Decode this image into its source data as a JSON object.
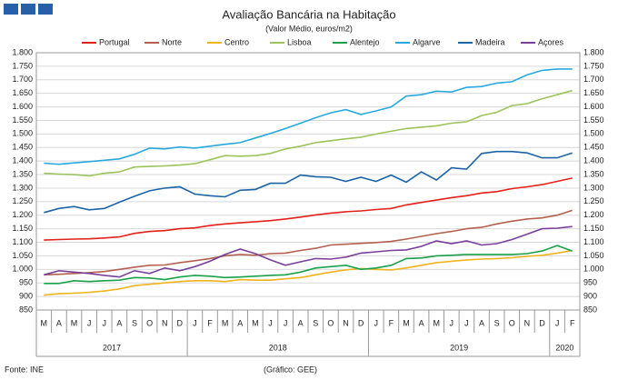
{
  "chart_data": {
    "type": "line",
    "title": "Avaliação Bancária na Habitação",
    "subtitle": "(Valor Médio, euros/m2)",
    "categories": [
      "M",
      "A",
      "M",
      "J",
      "J",
      "A",
      "S",
      "O",
      "N",
      "D",
      "J",
      "F",
      "M",
      "A",
      "M",
      "J",
      "J",
      "A",
      "S",
      "O",
      "N",
      "D",
      "J",
      "F",
      "M",
      "A",
      "M",
      "J",
      "J",
      "A",
      "S",
      "O",
      "N",
      "D",
      "J",
      "F"
    ],
    "years": [
      "2017",
      "2018",
      "2019",
      "2020"
    ],
    "series": [
      {
        "name": "Portugal",
        "color": "#e32119",
        "values": [
          1108,
          1110,
          1112,
          1113,
          1116,
          1120,
          1133,
          1140,
          1143,
          1150,
          1153,
          1162,
          1168,
          1172,
          1176,
          1180,
          1186,
          1193,
          1201,
          1208,
          1213,
          1216,
          1221,
          1225,
          1238,
          1247,
          1256,
          1265,
          1272,
          1282,
          1287,
          1298,
          1305,
          1313,
          1325,
          1337
        ]
      },
      {
        "name": "Norte",
        "color": "#b5604e",
        "values": [
          980,
          982,
          985,
          988,
          992,
          1000,
          1008,
          1015,
          1016,
          1025,
          1032,
          1040,
          1050,
          1055,
          1052,
          1058,
          1060,
          1070,
          1078,
          1090,
          1093,
          1096,
          1099,
          1103,
          1112,
          1122,
          1132,
          1140,
          1150,
          1155,
          1168,
          1178,
          1186,
          1190,
          1200,
          1218
        ]
      },
      {
        "name": "Centro",
        "color": "#f2b31d",
        "values": [
          905,
          910,
          912,
          915,
          920,
          928,
          940,
          945,
          950,
          955,
          958,
          958,
          955,
          962,
          960,
          960,
          965,
          970,
          980,
          990,
          998,
          1003,
          1000,
          998,
          1005,
          1015,
          1025,
          1030,
          1035,
          1038,
          1040,
          1043,
          1048,
          1052,
          1060,
          1070
        ]
      },
      {
        "name": "Lisboa",
        "color": "#9bc45a",
        "values": [
          1355,
          1352,
          1350,
          1345,
          1355,
          1360,
          1378,
          1380,
          1382,
          1385,
          1390,
          1405,
          1420,
          1418,
          1420,
          1428,
          1445,
          1455,
          1468,
          1475,
          1482,
          1488,
          1500,
          1510,
          1520,
          1525,
          1530,
          1540,
          1545,
          1568,
          1580,
          1605,
          1612,
          1630,
          1645,
          1660
        ]
      },
      {
        "name": "Alentejo",
        "color": "#1aa14a",
        "values": [
          948,
          948,
          958,
          955,
          958,
          960,
          970,
          968,
          962,
          972,
          978,
          975,
          970,
          972,
          975,
          978,
          980,
          990,
          1005,
          1010,
          1015,
          1000,
          1005,
          1015,
          1040,
          1042,
          1050,
          1052,
          1055,
          1055,
          1055,
          1055,
          1058,
          1068,
          1088,
          1068
        ]
      },
      {
        "name": "Algarve",
        "color": "#29a9e0",
        "values": [
          1392,
          1388,
          1393,
          1398,
          1403,
          1408,
          1425,
          1448,
          1445,
          1452,
          1448,
          1455,
          1462,
          1468,
          1485,
          1502,
          1520,
          1540,
          1560,
          1578,
          1590,
          1572,
          1585,
          1600,
          1640,
          1645,
          1658,
          1655,
          1672,
          1675,
          1688,
          1693,
          1718,
          1735,
          1740,
          1740
        ]
      },
      {
        "name": "Madeira",
        "color": "#1b64a8",
        "values": [
          1210,
          1225,
          1232,
          1220,
          1225,
          1248,
          1270,
          1290,
          1300,
          1305,
          1278,
          1272,
          1268,
          1292,
          1295,
          1318,
          1318,
          1348,
          1342,
          1340,
          1325,
          1340,
          1325,
          1348,
          1322,
          1360,
          1330,
          1375,
          1370,
          1428,
          1435,
          1435,
          1430,
          1412,
          1412,
          1430
        ]
      },
      {
        "name": "Açores",
        "color": "#7a3f9a",
        "values": [
          980,
          995,
          990,
          985,
          978,
          972,
          995,
          985,
          1005,
          995,
          1010,
          1030,
          1055,
          1075,
          1058,
          1035,
          1015,
          1028,
          1040,
          1038,
          1045,
          1060,
          1065,
          1070,
          1072,
          1085,
          1105,
          1095,
          1105,
          1090,
          1095,
          1110,
          1130,
          1150,
          1152,
          1158
        ]
      }
    ],
    "ylim": [
      850,
      1800
    ],
    "yticks": [
      850,
      900,
      950,
      {
        "value": 1000,
        "label": "1.000"
      },
      {
        "value": 1050,
        "label": "1.050"
      },
      {
        "value": 1100,
        "label": "1.100"
      },
      {
        "value": 1150,
        "label": "1.150"
      },
      {
        "value": 1200,
        "label": "1.200"
      },
      {
        "value": 1250,
        "label": "1.250"
      },
      {
        "value": 1300,
        "label": "1.300"
      },
      {
        "value": 1350,
        "label": "1.350"
      },
      {
        "value": 1400,
        "label": "1.400"
      },
      {
        "value": 1450,
        "label": "1.450"
      },
      {
        "value": 1500,
        "label": "1.500"
      },
      {
        "value": 1550,
        "label": "1.550"
      },
      {
        "value": 1600,
        "label": "1.600"
      },
      {
        "value": 1650,
        "label": "1.650"
      },
      {
        "value": 1700,
        "label": "1.700"
      },
      {
        "value": 1750,
        "label": "1.750"
      },
      {
        "value": 1800,
        "label": "1.800"
      }
    ],
    "grid": true,
    "source": "Fonte: INE",
    "credit": "(Gráfico: GEE)"
  }
}
